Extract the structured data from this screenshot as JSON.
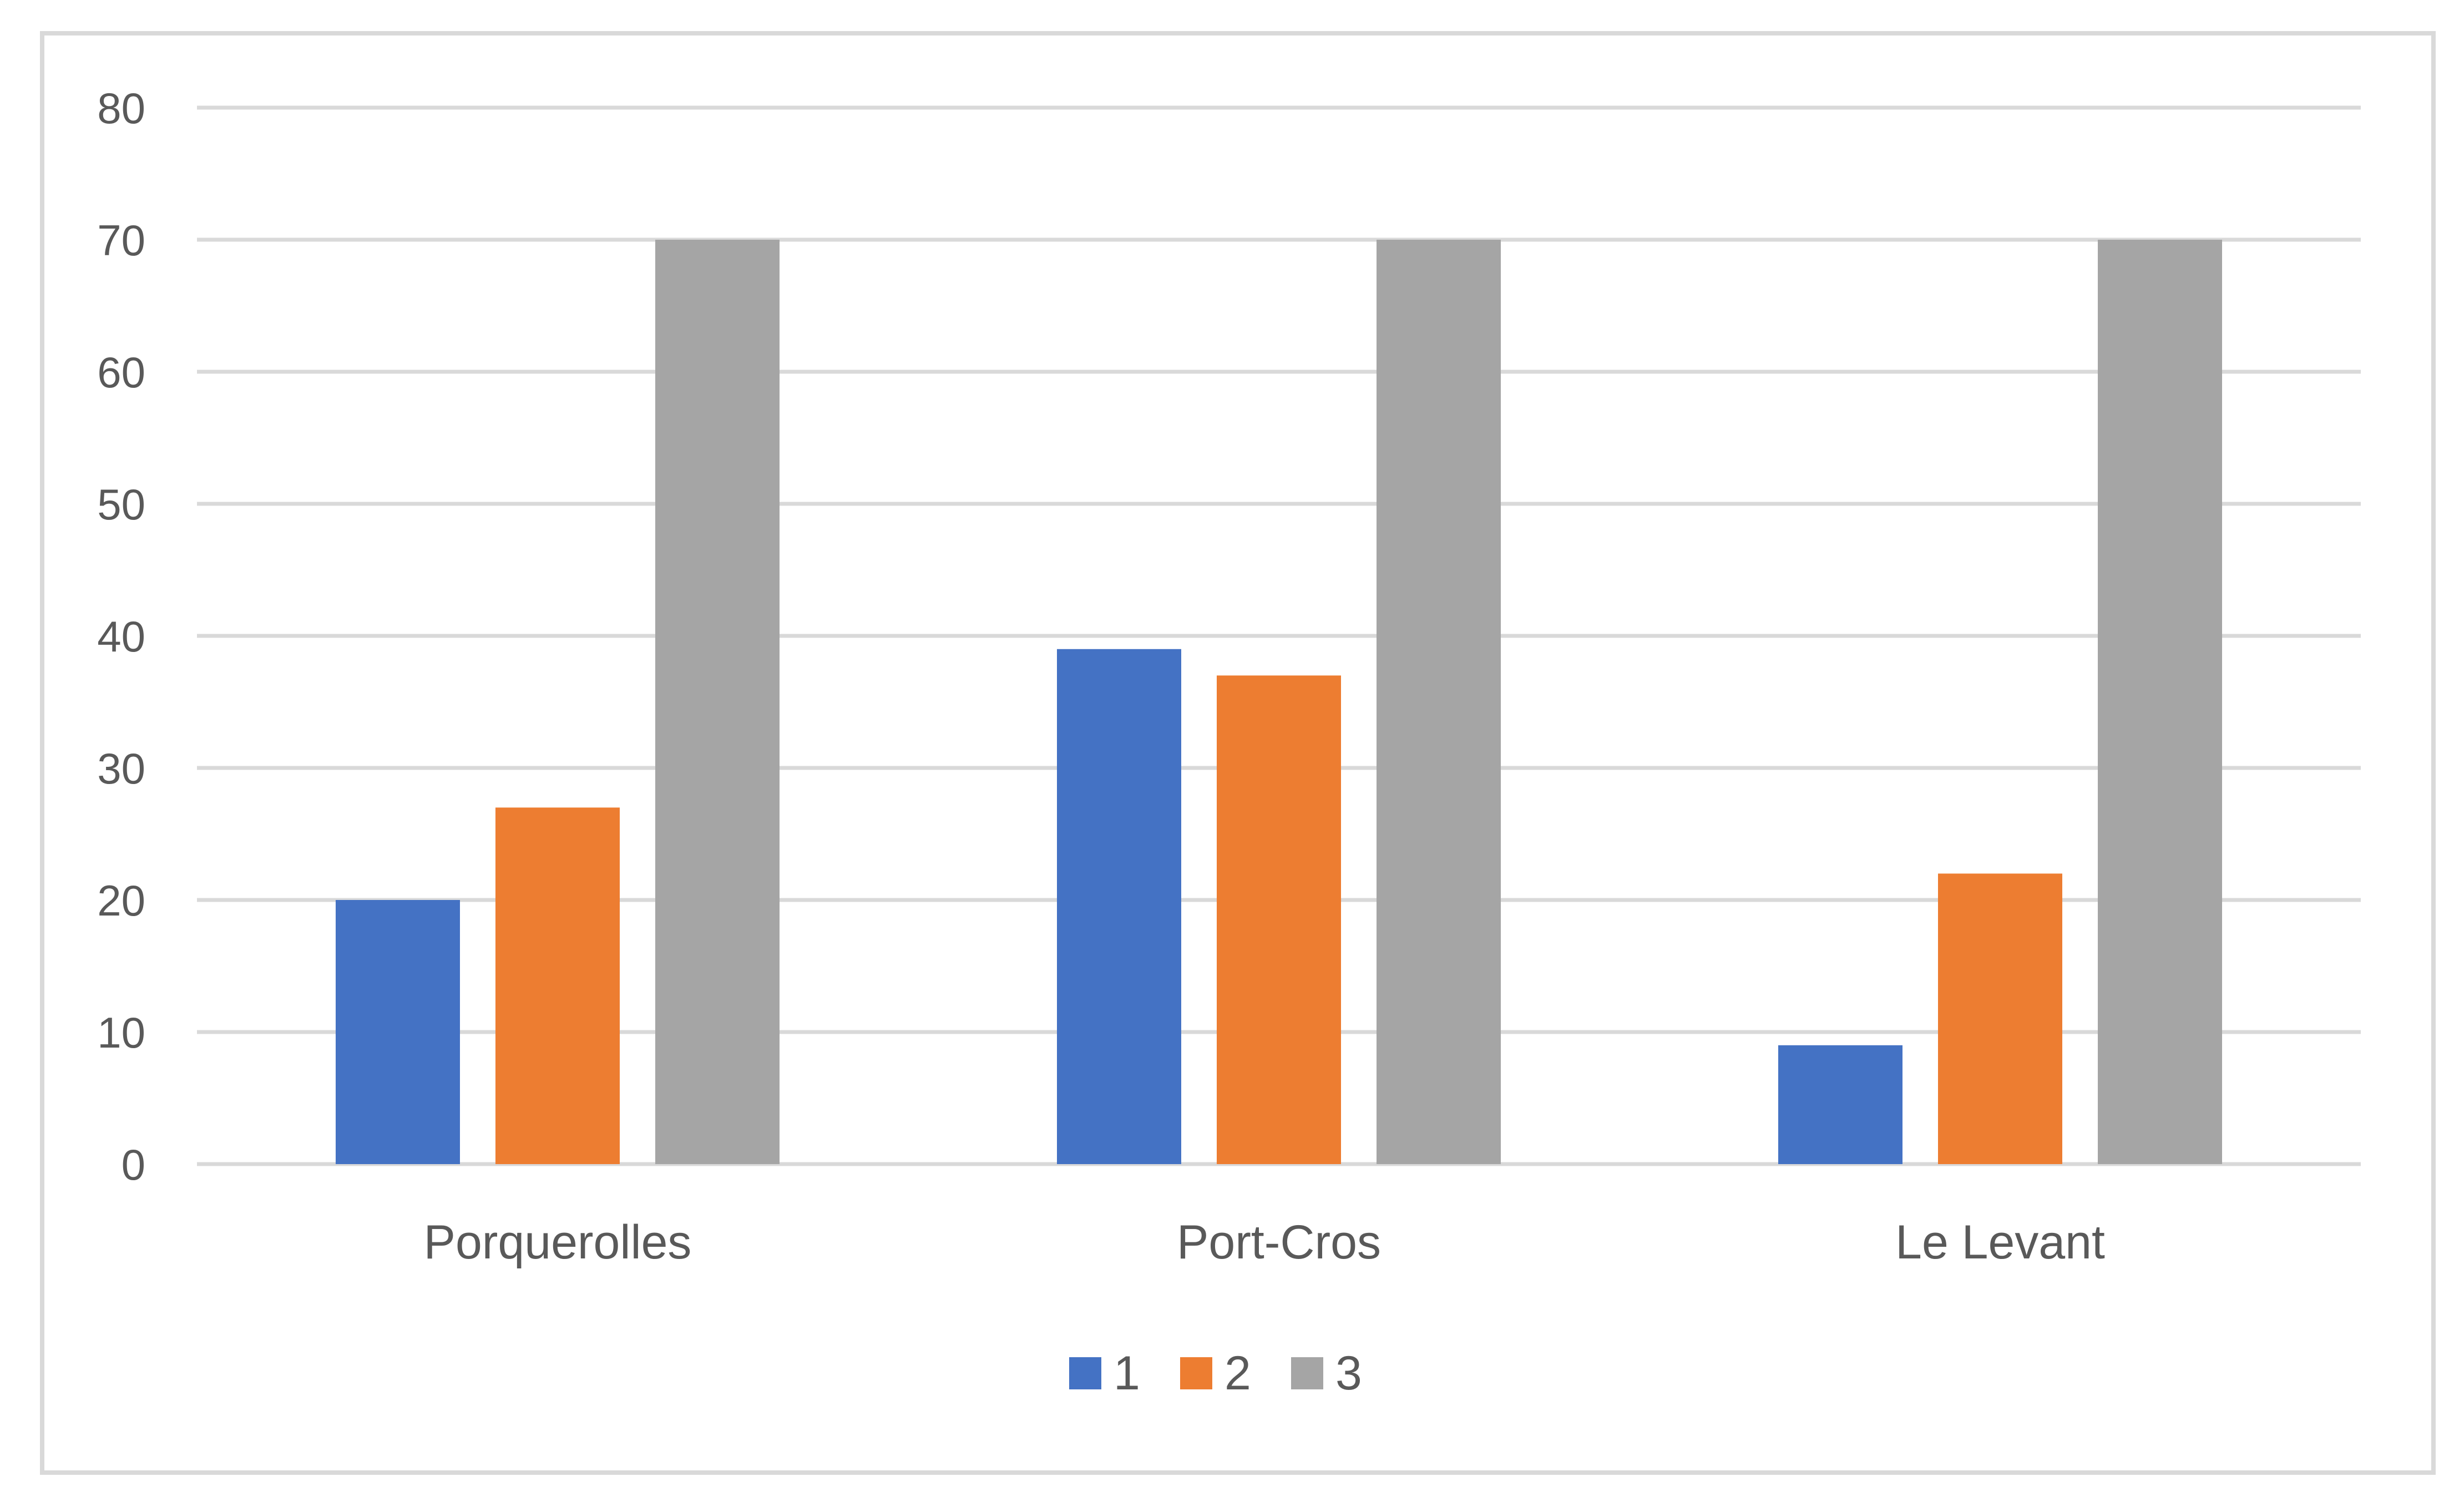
{
  "chart_data": {
    "type": "bar",
    "categories": [
      "Porquerolles",
      "Port-Cros",
      "Le Levant"
    ],
    "series": [
      {
        "name": "1",
        "values": [
          20,
          39,
          9
        ],
        "color": "#4472c4"
      },
      {
        "name": "2",
        "values": [
          27,
          37,
          22
        ],
        "color": "#ed7d31"
      },
      {
        "name": "3",
        "values": [
          70,
          70,
          70
        ],
        "color": "#a5a5a5"
      }
    ],
    "y_ticks": [
      0,
      10,
      20,
      30,
      40,
      50,
      60,
      70,
      80
    ],
    "ylim": [
      0,
      80
    ],
    "grid": true,
    "gridline_color": "#d9d9d9",
    "legend_position": "bottom",
    "title": "",
    "xlabel": "",
    "ylabel": ""
  }
}
